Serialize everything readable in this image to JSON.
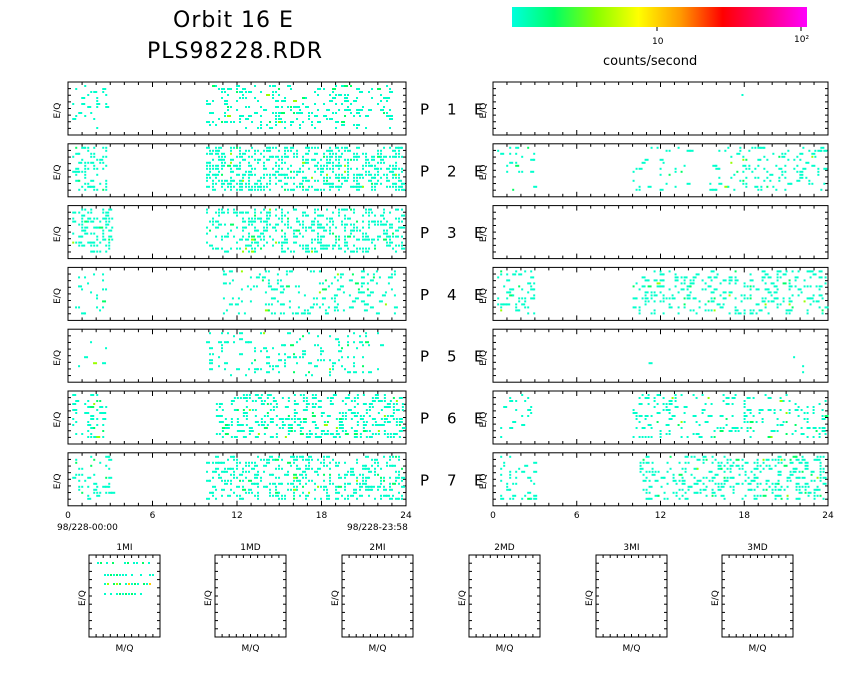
{
  "header": {
    "title_line1": "Orbit 16 E",
    "title_line2": "PLS98228.RDR"
  },
  "colorbar": {
    "tick_low": "10",
    "tick_high": "10²",
    "label": "counts/second",
    "colors": [
      "#00ffdd",
      "#00ff66",
      "#88ff00",
      "#ffff00",
      "#ff9900",
      "#ff0000",
      "#ff0077",
      "#ff00ff"
    ]
  },
  "chart_data": [
    {
      "type": "heatmap",
      "description_label": "time-energy spectrograms",
      "ylabel": "E/Q",
      "xlim": [
        0,
        24
      ],
      "x_ticks": [
        "0",
        "6",
        "12",
        "18",
        "24"
      ],
      "left_start_label": "98/228-00:00",
      "left_end_label": "98/228-23:58",
      "rows": [
        {
          "label": "P 1 E",
          "letters": [
            "P",
            "1",
            "E"
          ],
          "left": {
            "intervals": [
              [
                0.3,
                3.0,
                0.35
              ],
              [
                9.8,
                23.2,
                0.4
              ]
            ]
          },
          "right": {
            "intervals": [
              [
                17.8,
                18.2,
                0.05
              ]
            ]
          }
        },
        {
          "label": "P 2 E",
          "letters": [
            "P",
            "2",
            "E"
          ],
          "left": {
            "intervals": [
              [
                0.3,
                3.0,
                0.6
              ],
              [
                9.8,
                24,
                0.85
              ]
            ]
          },
          "right": {
            "intervals": [
              [
                0.3,
                3.2,
                0.15
              ],
              [
                10.0,
                14.5,
                0.15
              ],
              [
                15.5,
                24,
                0.35
              ]
            ]
          }
        },
        {
          "label": "P 3 E",
          "letters": [
            "P",
            "3",
            "E"
          ],
          "left": {
            "intervals": [
              [
                0.3,
                3.3,
                0.6
              ],
              [
                9.8,
                24,
                0.6
              ]
            ]
          },
          "right": {
            "intervals": []
          }
        },
        {
          "label": "P 4 E",
          "letters": [
            "P",
            "4",
            "E"
          ],
          "left": {
            "intervals": [
              [
                0.5,
                3.0,
                0.3
              ],
              [
                11.0,
                23.5,
                0.35
              ]
            ]
          },
          "right": {
            "intervals": [
              [
                0.3,
                3.3,
                0.45
              ],
              [
                10.0,
                24,
                0.45
              ]
            ]
          }
        },
        {
          "label": "P 5 E",
          "letters": [
            "P",
            "5",
            "E"
          ],
          "left": {
            "intervals": [
              [
                0.5,
                3.0,
                0.1
              ],
              [
                9.8,
                23.0,
                0.25
              ]
            ]
          },
          "right": {
            "intervals": [
              [
                10.5,
                11.5,
                0.05
              ],
              [
                21.5,
                22.5,
                0.05
              ]
            ]
          }
        },
        {
          "label": "P 6 E",
          "letters": [
            "P",
            "6",
            "E"
          ],
          "left": {
            "intervals": [
              [
                0.3,
                3.0,
                0.5
              ],
              [
                10.5,
                24,
                0.65
              ]
            ]
          },
          "right": {
            "intervals": [
              [
                0.3,
                3.0,
                0.2
              ],
              [
                10.0,
                24,
                0.35
              ]
            ]
          }
        },
        {
          "label": "P 7 E",
          "letters": [
            "P",
            "7",
            "E"
          ],
          "left": {
            "intervals": [
              [
                0.3,
                3.3,
                0.45
              ],
              [
                9.8,
                24,
                0.55
              ]
            ]
          },
          "right": {
            "intervals": [
              [
                0.3,
                3.3,
                0.35
              ],
              [
                10.5,
                24,
                0.6
              ]
            ]
          }
        }
      ]
    },
    {
      "type": "heatmap",
      "description_label": "mass-per-charge panels",
      "xlabel": "M/Q",
      "ylabel": "E/Q",
      "panels": [
        {
          "title": "1MI",
          "has_data": true
        },
        {
          "title": "1MD",
          "has_data": false
        },
        {
          "title": "2MI",
          "has_data": false
        },
        {
          "title": "2MD",
          "has_data": false
        },
        {
          "title": "3MI",
          "has_data": false
        },
        {
          "title": "3MD",
          "has_data": false
        }
      ]
    }
  ]
}
